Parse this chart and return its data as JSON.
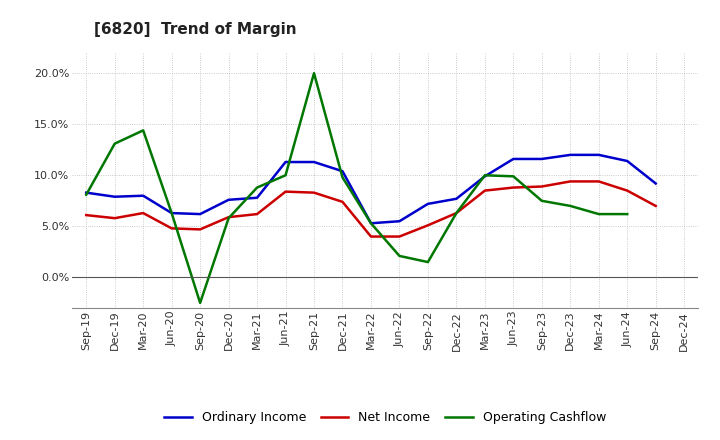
{
  "title": "[6820]  Trend of Margin",
  "x_labels": [
    "Sep-19",
    "Dec-19",
    "Mar-20",
    "Jun-20",
    "Sep-20",
    "Dec-20",
    "Mar-21",
    "Jun-21",
    "Sep-21",
    "Dec-21",
    "Mar-22",
    "Jun-22",
    "Sep-22",
    "Dec-22",
    "Mar-23",
    "Jun-23",
    "Sep-23",
    "Dec-23",
    "Mar-24",
    "Jun-24",
    "Sep-24",
    "Dec-24"
  ],
  "ordinary_income": [
    8.3,
    7.9,
    8.0,
    6.3,
    6.2,
    7.6,
    7.8,
    11.3,
    11.3,
    10.4,
    5.3,
    5.5,
    7.2,
    7.7,
    9.9,
    11.6,
    11.6,
    12.0,
    12.0,
    11.4,
    9.2,
    null
  ],
  "net_income": [
    6.1,
    5.8,
    6.3,
    4.8,
    4.7,
    5.9,
    6.2,
    8.4,
    8.3,
    7.4,
    4.0,
    4.0,
    5.1,
    6.3,
    8.5,
    8.8,
    8.9,
    9.4,
    9.4,
    8.5,
    7.0,
    null
  ],
  "operating_cashflow": [
    8.1,
    13.1,
    14.4,
    6.3,
    -2.5,
    5.8,
    8.8,
    10.0,
    20.0,
    9.8,
    5.3,
    2.1,
    1.5,
    6.3,
    10.0,
    9.9,
    7.5,
    7.0,
    6.2,
    6.2,
    null,
    null
  ],
  "ylim": [
    -3.0,
    22.0
  ],
  "yticks": [
    0.0,
    5.0,
    10.0,
    15.0,
    20.0
  ],
  "ordinary_income_color": "#0000cc",
  "net_income_color": "#cc0000",
  "operating_cashflow_color": "#007700",
  "background_color": "#ffffff",
  "grid_color": "#bbbbbb",
  "title_fontsize": 11,
  "title_fontweight": "bold",
  "tick_fontsize": 8,
  "legend_labels": [
    "Ordinary Income",
    "Net Income",
    "Operating Cashflow"
  ],
  "legend_fontsize": 9,
  "linewidth": 1.8
}
